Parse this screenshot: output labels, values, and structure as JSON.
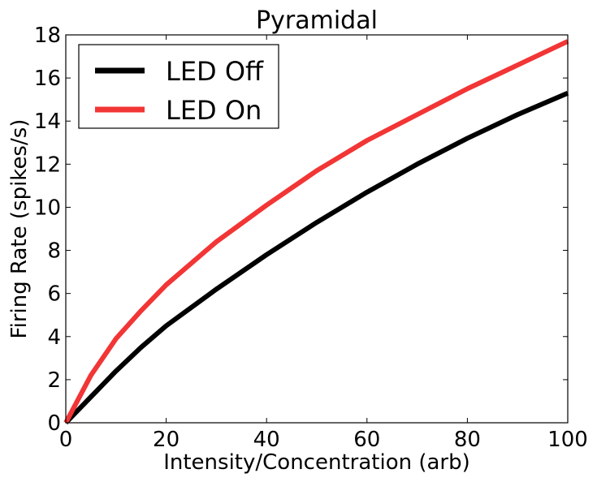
{
  "chart_data": {
    "type": "line",
    "title": "Pyramidal",
    "xlabel": "Intensity/Concentration (arb)",
    "ylabel": "Firing Rate (spikes/s)",
    "xlim": [
      0,
      100
    ],
    "ylim": [
      0,
      18
    ],
    "xticks": [
      0,
      20,
      40,
      60,
      80,
      100
    ],
    "yticks": [
      0,
      2,
      4,
      6,
      8,
      10,
      12,
      14,
      16,
      18
    ],
    "grid": false,
    "legend_position": "top-left",
    "x": [
      0,
      5,
      10,
      15,
      20,
      30,
      40,
      50,
      60,
      70,
      80,
      90,
      100
    ],
    "series": [
      {
        "name": "LED Off",
        "color": "#000000",
        "values": [
          0,
          1.2,
          2.4,
          3.5,
          4.5,
          6.2,
          7.8,
          9.3,
          10.7,
          12.0,
          13.2,
          14.3,
          15.3
        ]
      },
      {
        "name": "LED On",
        "color": "#f23535",
        "values": [
          0,
          2.2,
          3.9,
          5.2,
          6.4,
          8.4,
          10.1,
          11.7,
          13.1,
          14.3,
          15.5,
          16.6,
          17.7
        ]
      }
    ]
  }
}
